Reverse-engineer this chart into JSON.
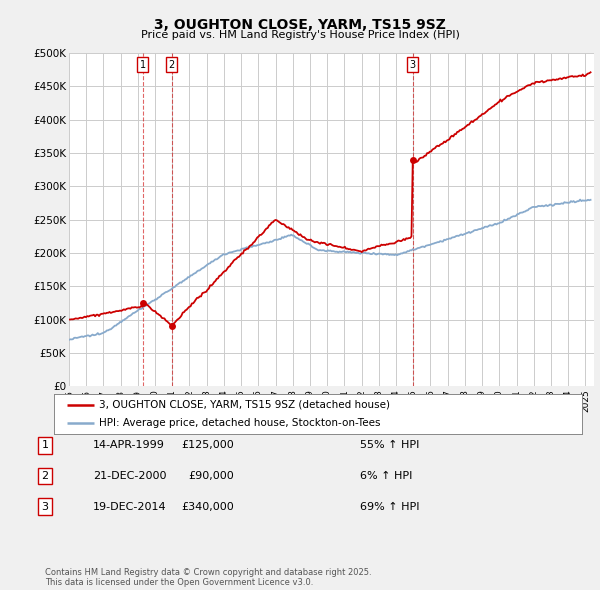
{
  "title": "3, OUGHTON CLOSE, YARM, TS15 9SZ",
  "subtitle": "Price paid vs. HM Land Registry's House Price Index (HPI)",
  "ylabel_ticks": [
    "£0",
    "£50K",
    "£100K",
    "£150K",
    "£200K",
    "£250K",
    "£300K",
    "£350K",
    "£400K",
    "£450K",
    "£500K"
  ],
  "ytick_values": [
    0,
    50000,
    100000,
    150000,
    200000,
    250000,
    300000,
    350000,
    400000,
    450000,
    500000
  ],
  "ylim": [
    0,
    500000
  ],
  "xlim_start": 1995.0,
  "xlim_end": 2025.5,
  "transaction_dates": [
    1999.29,
    2000.97,
    2014.97
  ],
  "transaction_prices": [
    125000,
    90000,
    340000
  ],
  "transaction_labels": [
    "1",
    "2",
    "3"
  ],
  "property_line_color": "#cc0000",
  "hpi_line_color": "#88aacc",
  "grid_color": "#cccccc",
  "background_color": "#f0f0f0",
  "plot_bg_color": "#ffffff",
  "legend_line1": "3, OUGHTON CLOSE, YARM, TS15 9SZ (detached house)",
  "legend_line2": "HPI: Average price, detached house, Stockton-on-Tees",
  "footnote": "Contains HM Land Registry data © Crown copyright and database right 2025.\nThis data is licensed under the Open Government Licence v3.0.",
  "table_rows": [
    [
      "1",
      "14-APR-1999",
      "£125,000",
      "55% ↑ HPI"
    ],
    [
      "2",
      "21-DEC-2000",
      "£90,000",
      "6% ↑ HPI"
    ],
    [
      "3",
      "19-DEC-2014",
      "£340,000",
      "69% ↑ HPI"
    ]
  ]
}
